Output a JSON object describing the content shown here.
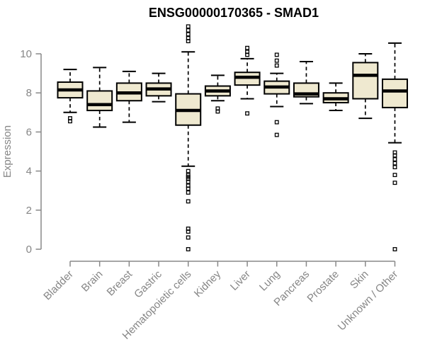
{
  "chart_data": {
    "type": "boxplot",
    "title": "ENSG00000170365 - SMAD1",
    "ylabel": "Expression",
    "xlabel": "",
    "ylim": [
      0,
      11.5
    ],
    "yticks": [
      0,
      2,
      4,
      6,
      8,
      10
    ],
    "grid": false,
    "legend": "none",
    "title_color": "#000000",
    "axis_color": "#888888",
    "label_color": "#868686",
    "box_fill": "#EFE9D0",
    "box_border": "#000000",
    "categories": [
      "Bladder",
      "Brain",
      "Breast",
      "Gastric",
      "Hematopoietic cells",
      "Kidney",
      "Liver",
      "Lung",
      "Pancreas",
      "Prostate",
      "Skin",
      "Unknown / Other"
    ],
    "series": [
      {
        "name": "Bladder",
        "low": 7.0,
        "q1": 7.75,
        "median": 8.15,
        "q3": 8.55,
        "high": 9.2,
        "outliers": [
          6.7,
          6.55
        ]
      },
      {
        "name": "Brain",
        "low": 6.25,
        "q1": 7.1,
        "median": 7.4,
        "q3": 8.1,
        "high": 9.3,
        "outliers": []
      },
      {
        "name": "Breast",
        "low": 6.5,
        "q1": 7.6,
        "median": 8.0,
        "q3": 8.5,
        "high": 9.1,
        "outliers": []
      },
      {
        "name": "Gastric",
        "low": 7.55,
        "q1": 7.85,
        "median": 8.2,
        "q3": 8.5,
        "high": 9.0,
        "outliers": []
      },
      {
        "name": "Hematopoietic cells",
        "low": 4.25,
        "q1": 6.35,
        "median": 7.1,
        "q3": 7.95,
        "high": 10.1,
        "outliers": [
          11.4,
          11.2,
          11.0,
          10.8,
          10.65,
          4.0,
          3.8,
          3.7,
          3.6,
          3.45,
          3.25,
          3.1,
          2.9,
          2.45,
          1.05,
          0.9,
          0.6,
          0.0
        ]
      },
      {
        "name": "Kidney",
        "low": 7.6,
        "q1": 7.85,
        "median": 8.1,
        "q3": 8.35,
        "high": 8.9,
        "outliers": [
          7.2,
          7.05
        ]
      },
      {
        "name": "Liver",
        "low": 7.7,
        "q1": 8.4,
        "median": 8.8,
        "q3": 9.05,
        "high": 9.75,
        "outliers": [
          10.3,
          10.1,
          9.95,
          6.95
        ]
      },
      {
        "name": "Lung",
        "low": 7.3,
        "q1": 7.95,
        "median": 8.3,
        "q3": 8.6,
        "high": 9.0,
        "outliers": [
          9.95,
          9.65,
          9.4,
          6.5,
          5.85
        ]
      },
      {
        "name": "Pancreas",
        "low": 7.45,
        "q1": 7.8,
        "median": 7.95,
        "q3": 8.5,
        "high": 9.6,
        "outliers": []
      },
      {
        "name": "Prostate",
        "low": 7.1,
        "q1": 7.5,
        "median": 7.7,
        "q3": 8.0,
        "high": 8.5,
        "outliers": []
      },
      {
        "name": "Skin",
        "low": 6.7,
        "q1": 7.7,
        "median": 8.9,
        "q3": 9.55,
        "high": 10.0,
        "outliers": []
      },
      {
        "name": "Unknown / Other",
        "low": 5.45,
        "q1": 7.25,
        "median": 8.1,
        "q3": 8.7,
        "high": 10.55,
        "outliers": [
          4.95,
          4.8,
          4.6,
          4.4,
          4.2,
          3.8,
          3.4,
          0.0
        ]
      }
    ]
  }
}
